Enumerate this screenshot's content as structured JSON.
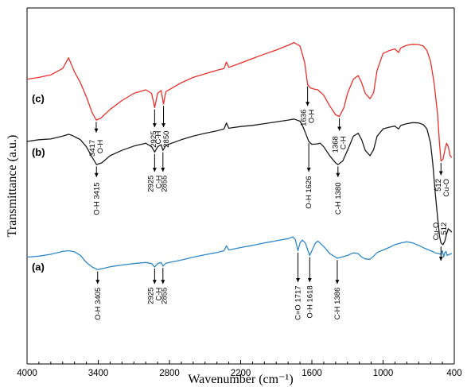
{
  "chart_data": {
    "type": "line",
    "title": "",
    "xlabel": "Wavenumber (cm⁻¹)",
    "ylabel": "Transmittance (a.u.)",
    "xlim": [
      4000,
      400
    ],
    "x_reversed": true,
    "xticks": [
      4000,
      3400,
      2800,
      2200,
      1600,
      1000,
      400
    ],
    "grid": false,
    "series": [
      {
        "name": "(c)",
        "color": "#e8302a",
        "points": [
          [
            4000,
            0.8
          ],
          [
            3900,
            0.805
          ],
          [
            3800,
            0.812
          ],
          [
            3700,
            0.83
          ],
          [
            3650,
            0.86
          ],
          [
            3600,
            0.82
          ],
          [
            3550,
            0.79
          ],
          [
            3500,
            0.75
          ],
          [
            3450,
            0.705
          ],
          [
            3417,
            0.685
          ],
          [
            3380,
            0.69
          ],
          [
            3300,
            0.715
          ],
          [
            3200,
            0.74
          ],
          [
            3100,
            0.76
          ],
          [
            3000,
            0.77
          ],
          [
            2950,
            0.76
          ],
          [
            2925,
            0.72
          ],
          [
            2900,
            0.76
          ],
          [
            2870,
            0.768
          ],
          [
            2850,
            0.73
          ],
          [
            2830,
            0.765
          ],
          [
            2700,
            0.79
          ],
          [
            2600,
            0.805
          ],
          [
            2500,
            0.815
          ],
          [
            2400,
            0.825
          ],
          [
            2340,
            0.83
          ],
          [
            2320,
            0.848
          ],
          [
            2300,
            0.833
          ],
          [
            2200,
            0.845
          ],
          [
            2100,
            0.858
          ],
          [
            2000,
            0.87
          ],
          [
            1900,
            0.882
          ],
          [
            1800,
            0.895
          ],
          [
            1750,
            0.903
          ],
          [
            1700,
            0.893
          ],
          [
            1680,
            0.87
          ],
          [
            1660,
            0.845
          ],
          [
            1636,
            0.785
          ],
          [
            1610,
            0.775
          ],
          [
            1580,
            0.772
          ],
          [
            1550,
            0.77
          ],
          [
            1500,
            0.755
          ],
          [
            1450,
            0.725
          ],
          [
            1400,
            0.7
          ],
          [
            1368,
            0.695
          ],
          [
            1330,
            0.72
          ],
          [
            1300,
            0.76
          ],
          [
            1250,
            0.8
          ],
          [
            1210,
            0.81
          ],
          [
            1180,
            0.79
          ],
          [
            1150,
            0.76
          ],
          [
            1110,
            0.745
          ],
          [
            1080,
            0.762
          ],
          [
            1050,
            0.825
          ],
          [
            1000,
            0.872
          ],
          [
            950,
            0.88
          ],
          [
            900,
            0.885
          ],
          [
            870,
            0.875
          ],
          [
            850,
            0.888
          ],
          [
            800,
            0.895
          ],
          [
            750,
            0.898
          ],
          [
            700,
            0.897
          ],
          [
            660,
            0.893
          ],
          [
            630,
            0.88
          ],
          [
            600,
            0.85
          ],
          [
            570,
            0.79
          ],
          [
            540,
            0.7
          ],
          [
            525,
            0.62
          ],
          [
            512,
            0.57
          ],
          [
            495,
            0.575
          ],
          [
            480,
            0.6
          ],
          [
            465,
            0.62
          ],
          [
            450,
            0.61
          ],
          [
            435,
            0.585
          ],
          [
            420,
            0.58
          ]
        ]
      },
      {
        "name": "(b)",
        "color": "#1a1a1a",
        "points": [
          [
            4000,
            0.625
          ],
          [
            3900,
            0.63
          ],
          [
            3800,
            0.632
          ],
          [
            3700,
            0.64
          ],
          [
            3650,
            0.645
          ],
          [
            3620,
            0.642
          ],
          [
            3580,
            0.635
          ],
          [
            3550,
            0.63
          ],
          [
            3500,
            0.61
          ],
          [
            3450,
            0.58
          ],
          [
            3415,
            0.56
          ],
          [
            3370,
            0.565
          ],
          [
            3300,
            0.585
          ],
          [
            3200,
            0.6
          ],
          [
            3100,
            0.612
          ],
          [
            3000,
            0.62
          ],
          [
            2950,
            0.61
          ],
          [
            2925,
            0.595
          ],
          [
            2900,
            0.61
          ],
          [
            2870,
            0.616
          ],
          [
            2855,
            0.6
          ],
          [
            2830,
            0.614
          ],
          [
            2700,
            0.63
          ],
          [
            2600,
            0.64
          ],
          [
            2500,
            0.648
          ],
          [
            2400,
            0.655
          ],
          [
            2340,
            0.66
          ],
          [
            2320,
            0.677
          ],
          [
            2300,
            0.662
          ],
          [
            2200,
            0.667
          ],
          [
            2100,
            0.67
          ],
          [
            2000,
            0.675
          ],
          [
            1900,
            0.68
          ],
          [
            1800,
            0.685
          ],
          [
            1750,
            0.688
          ],
          [
            1700,
            0.682
          ],
          [
            1680,
            0.67
          ],
          [
            1655,
            0.65
          ],
          [
            1626,
            0.625
          ],
          [
            1600,
            0.617
          ],
          [
            1560,
            0.618
          ],
          [
            1530,
            0.62
          ],
          [
            1500,
            0.61
          ],
          [
            1450,
            0.585
          ],
          [
            1400,
            0.565
          ],
          [
            1380,
            0.56
          ],
          [
            1340,
            0.57
          ],
          [
            1300,
            0.6
          ],
          [
            1250,
            0.64
          ],
          [
            1210,
            0.648
          ],
          [
            1180,
            0.63
          ],
          [
            1150,
            0.6
          ],
          [
            1110,
            0.585
          ],
          [
            1080,
            0.602
          ],
          [
            1050,
            0.64
          ],
          [
            1000,
            0.66
          ],
          [
            950,
            0.665
          ],
          [
            900,
            0.668
          ],
          [
            870,
            0.66
          ],
          [
            850,
            0.67
          ],
          [
            800,
            0.675
          ],
          [
            750,
            0.678
          ],
          [
            700,
            0.677
          ],
          [
            660,
            0.672
          ],
          [
            630,
            0.66
          ],
          [
            600,
            0.62
          ],
          [
            580,
            0.56
          ],
          [
            560,
            0.48
          ],
          [
            540,
            0.41
          ],
          [
            525,
            0.36
          ],
          [
            512,
            0.34
          ],
          [
            495,
            0.335
          ],
          [
            480,
            0.345
          ],
          [
            465,
            0.365
          ],
          [
            450,
            0.38
          ],
          [
            435,
            0.375
          ],
          [
            420,
            0.37
          ]
        ]
      },
      {
        "name": "(a)",
        "color": "#2f88c8",
        "points": [
          [
            4000,
            0.3
          ],
          [
            3900,
            0.303
          ],
          [
            3800,
            0.308
          ],
          [
            3700,
            0.316
          ],
          [
            3650,
            0.318
          ],
          [
            3600,
            0.315
          ],
          [
            3550,
            0.305
          ],
          [
            3500,
            0.285
          ],
          [
            3450,
            0.272
          ],
          [
            3405,
            0.265
          ],
          [
            3360,
            0.268
          ],
          [
            3300,
            0.273
          ],
          [
            3200,
            0.278
          ],
          [
            3100,
            0.282
          ],
          [
            3000,
            0.285
          ],
          [
            2950,
            0.282
          ],
          [
            2925,
            0.272
          ],
          [
            2900,
            0.282
          ],
          [
            2870,
            0.285
          ],
          [
            2855,
            0.275
          ],
          [
            2830,
            0.283
          ],
          [
            2700,
            0.292
          ],
          [
            2600,
            0.3
          ],
          [
            2500,
            0.307
          ],
          [
            2400,
            0.313
          ],
          [
            2340,
            0.318
          ],
          [
            2320,
            0.332
          ],
          [
            2300,
            0.32
          ],
          [
            2200,
            0.327
          ],
          [
            2100,
            0.333
          ],
          [
            2000,
            0.34
          ],
          [
            1900,
            0.346
          ],
          [
            1800,
            0.352
          ],
          [
            1760,
            0.357
          ],
          [
            1740,
            0.35
          ],
          [
            1717,
            0.318
          ],
          [
            1700,
            0.34
          ],
          [
            1680,
            0.348
          ],
          [
            1655,
            0.34
          ],
          [
            1635,
            0.32
          ],
          [
            1618,
            0.305
          ],
          [
            1600,
            0.318
          ],
          [
            1570,
            0.34
          ],
          [
            1550,
            0.345
          ],
          [
            1500,
            0.33
          ],
          [
            1450,
            0.31
          ],
          [
            1400,
            0.3
          ],
          [
            1386,
            0.297
          ],
          [
            1350,
            0.3
          ],
          [
            1300,
            0.305
          ],
          [
            1250,
            0.312
          ],
          [
            1210,
            0.31
          ],
          [
            1180,
            0.3
          ],
          [
            1150,
            0.295
          ],
          [
            1110,
            0.294
          ],
          [
            1080,
            0.303
          ],
          [
            1050,
            0.313
          ],
          [
            1000,
            0.32
          ],
          [
            950,
            0.327
          ],
          [
            900,
            0.335
          ],
          [
            850,
            0.34
          ],
          [
            800,
            0.343
          ],
          [
            750,
            0.34
          ],
          [
            700,
            0.333
          ],
          [
            650,
            0.325
          ],
          [
            600,
            0.318
          ],
          [
            560,
            0.312
          ],
          [
            530,
            0.31
          ],
          [
            512,
            0.308
          ],
          [
            500,
            0.318
          ],
          [
            490,
            0.3
          ],
          [
            480,
            0.312
          ],
          [
            470,
            0.316
          ],
          [
            460,
            0.305
          ],
          [
            440,
            0.308
          ],
          [
            420,
            0.31
          ]
        ]
      }
    ],
    "series_label_pos": [
      {
        "label": "(c)",
        "x": 3960,
        "y": 0.735
      },
      {
        "label": "(b)",
        "x": 3960,
        "y": 0.585
      },
      {
        "label": "(a)",
        "x": 3960,
        "y": 0.262
      }
    ],
    "annotations": [
      {
        "x": 3417,
        "y0": 0.68,
        "y1": 0.65,
        "text": [
          "3417",
          "O-H"
        ],
        "ty": 0.63
      },
      {
        "x": 2925,
        "y0": 0.715,
        "y1": 0.665,
        "text": [
          "2925"
        ],
        "ty": 0.655,
        "tx": 2935
      },
      {
        "x": 2850,
        "y0": 0.725,
        "y1": 0.665,
        "text": [
          "C-H",
          "2850"
        ],
        "ty": 0.655,
        "tx": 2860
      },
      {
        "x": 1636,
        "y0": 0.78,
        "y1": 0.725,
        "text": [
          "1636",
          "O-H"
        ],
        "ty": 0.715
      },
      {
        "x": 1368,
        "y0": 0.69,
        "y1": 0.655,
        "text": [
          "1368",
          "C-H"
        ],
        "ty": 0.64
      },
      {
        "x": 3415,
        "y0": 0.555,
        "y1": 0.525,
        "text": [
          "O-H 3415"
        ],
        "ty": 0.51
      },
      {
        "x": 2925,
        "y0": 0.59,
        "y1": 0.54,
        "text": [
          "2925",
          "C-H"
        ],
        "ty": 0.53
      },
      {
        "x": 2855,
        "y0": 0.595,
        "y1": 0.54,
        "text": [
          "2855"
        ],
        "ty": 0.53,
        "tx": 2843
      },
      {
        "x": 1626,
        "y0": 0.62,
        "y1": 0.54,
        "text": [
          "O-H 1626"
        ],
        "ty": 0.528
      },
      {
        "x": 1380,
        "y0": 0.555,
        "y1": 0.525,
        "text": [
          "C-H 1380"
        ],
        "ty": 0.51
      },
      {
        "x": 512,
        "y0": 0.565,
        "y1": 0.53,
        "text": [
          "512",
          "Cu-O"
        ],
        "ty": 0.52,
        "tx": 500
      },
      {
        "x": 512,
        "y0": 0.33,
        "y1": 0.29,
        "text": [
          "Cu-O",
          "512"
        ],
        "ty": 0.398,
        "tx": 522
      },
      {
        "x": 3405,
        "y0": 0.26,
        "y1": 0.225,
        "text": [
          "O-H 3405"
        ],
        "ty": 0.215
      },
      {
        "x": 2925,
        "y0": 0.268,
        "y1": 0.225,
        "text": [
          "2925",
          "C-H"
        ],
        "ty": 0.215
      },
      {
        "x": 2855,
        "y0": 0.27,
        "y1": 0.225,
        "text": [
          "2855"
        ],
        "ty": 0.215,
        "tx": 2843
      },
      {
        "x": 1717,
        "y0": 0.313,
        "y1": 0.23,
        "text": [
          "C=O 1717"
        ],
        "ty": 0.22
      },
      {
        "x": 1618,
        "y0": 0.3,
        "y1": 0.23,
        "text": [
          "O-H 1618"
        ],
        "ty": 0.22
      },
      {
        "x": 1386,
        "y0": 0.292,
        "y1": 0.225,
        "text": [
          "C-H 1386"
        ],
        "ty": 0.215
      }
    ]
  }
}
